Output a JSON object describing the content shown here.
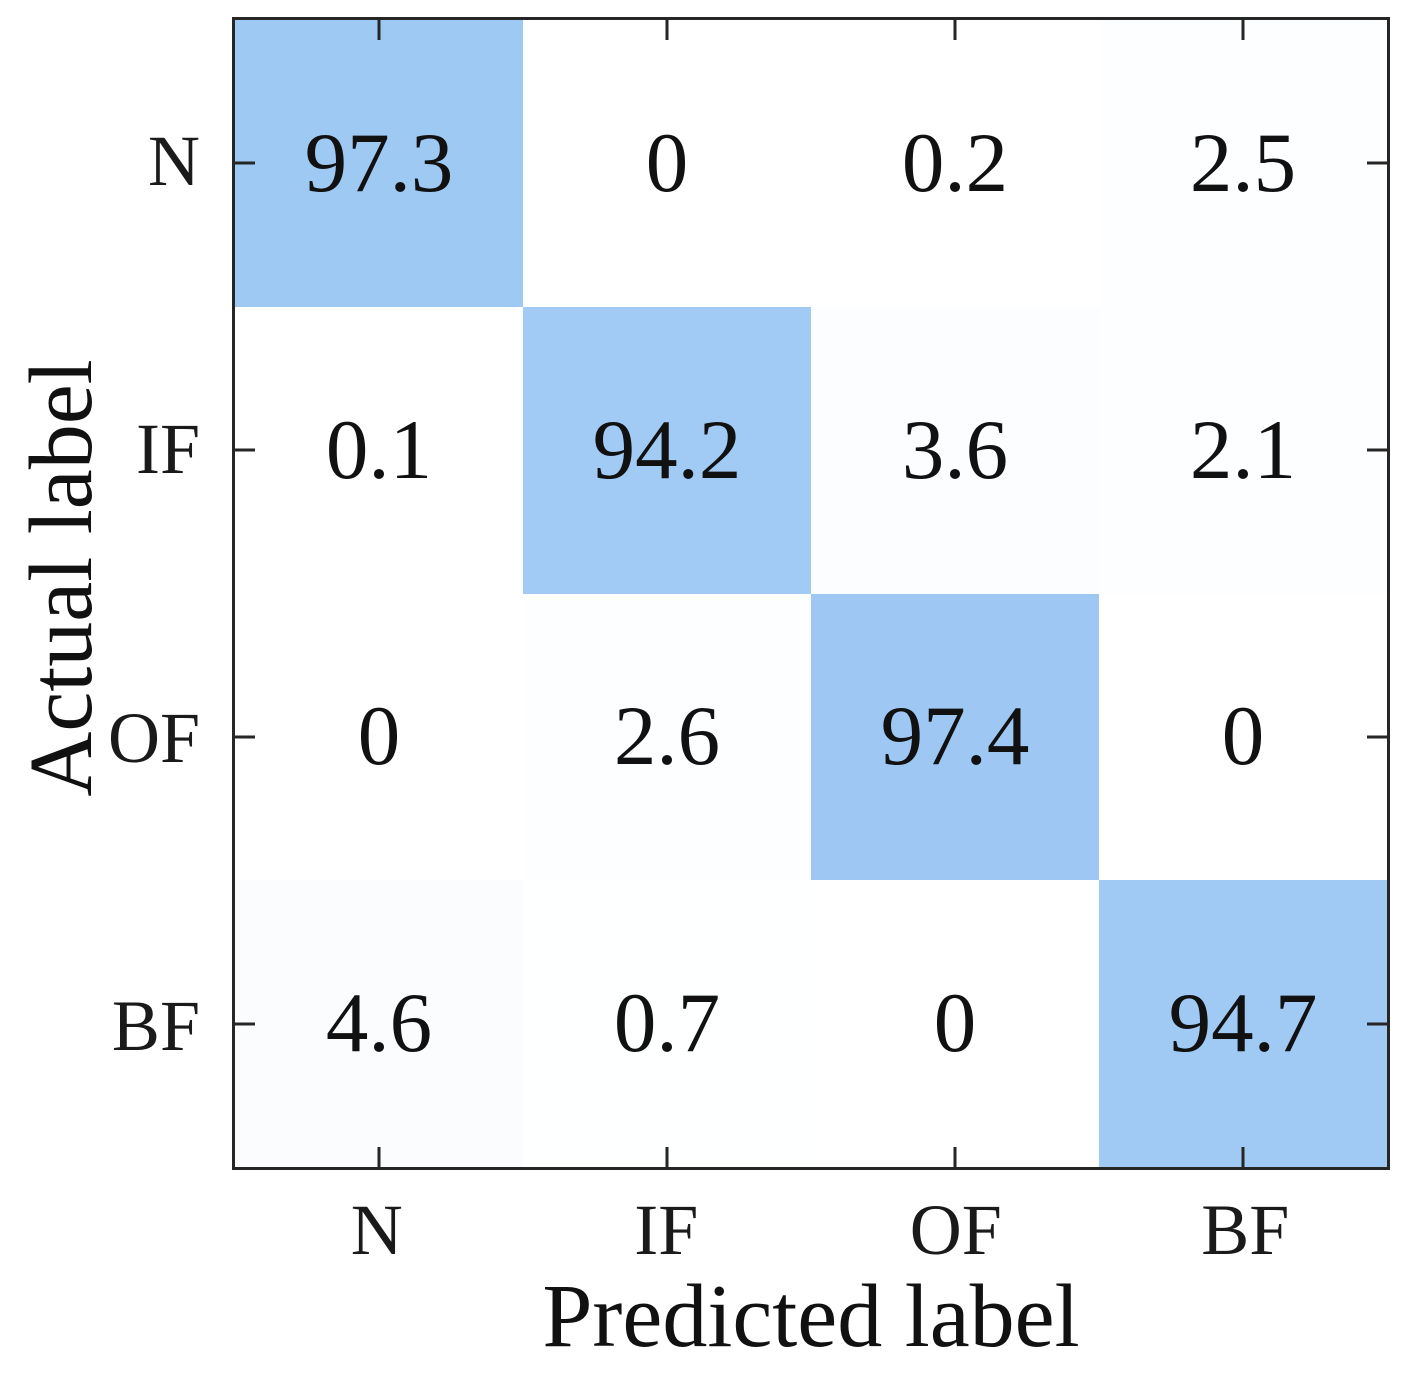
{
  "colors": {
    "diagonal_blue": "#9bc7f3",
    "cell_white": "#ffffff",
    "axis_line": "#262626",
    "text": "#111111",
    "background": "#ffffff"
  },
  "chart_data": {
    "type": "heatmap",
    "subtype": "confusion-matrix",
    "title": "",
    "xlabel": "Predicted label",
    "ylabel": "Actual label",
    "categories": [
      "N",
      "IF",
      "OF",
      "BF"
    ],
    "rows": [
      "N",
      "IF",
      "OF",
      "BF"
    ],
    "matrix": [
      [
        97.3,
        0,
        0.2,
        2.5
      ],
      [
        0.1,
        94.2,
        3.6,
        2.1
      ],
      [
        0,
        2.6,
        97.4,
        0
      ],
      [
        4.6,
        0.7,
        0,
        94.7
      ]
    ],
    "value_scale": [
      0,
      100
    ],
    "colormap": [
      "#ffffff",
      "#9bc7f3"
    ],
    "grid": false,
    "legend": false,
    "ticks": "inward-all-sides"
  }
}
